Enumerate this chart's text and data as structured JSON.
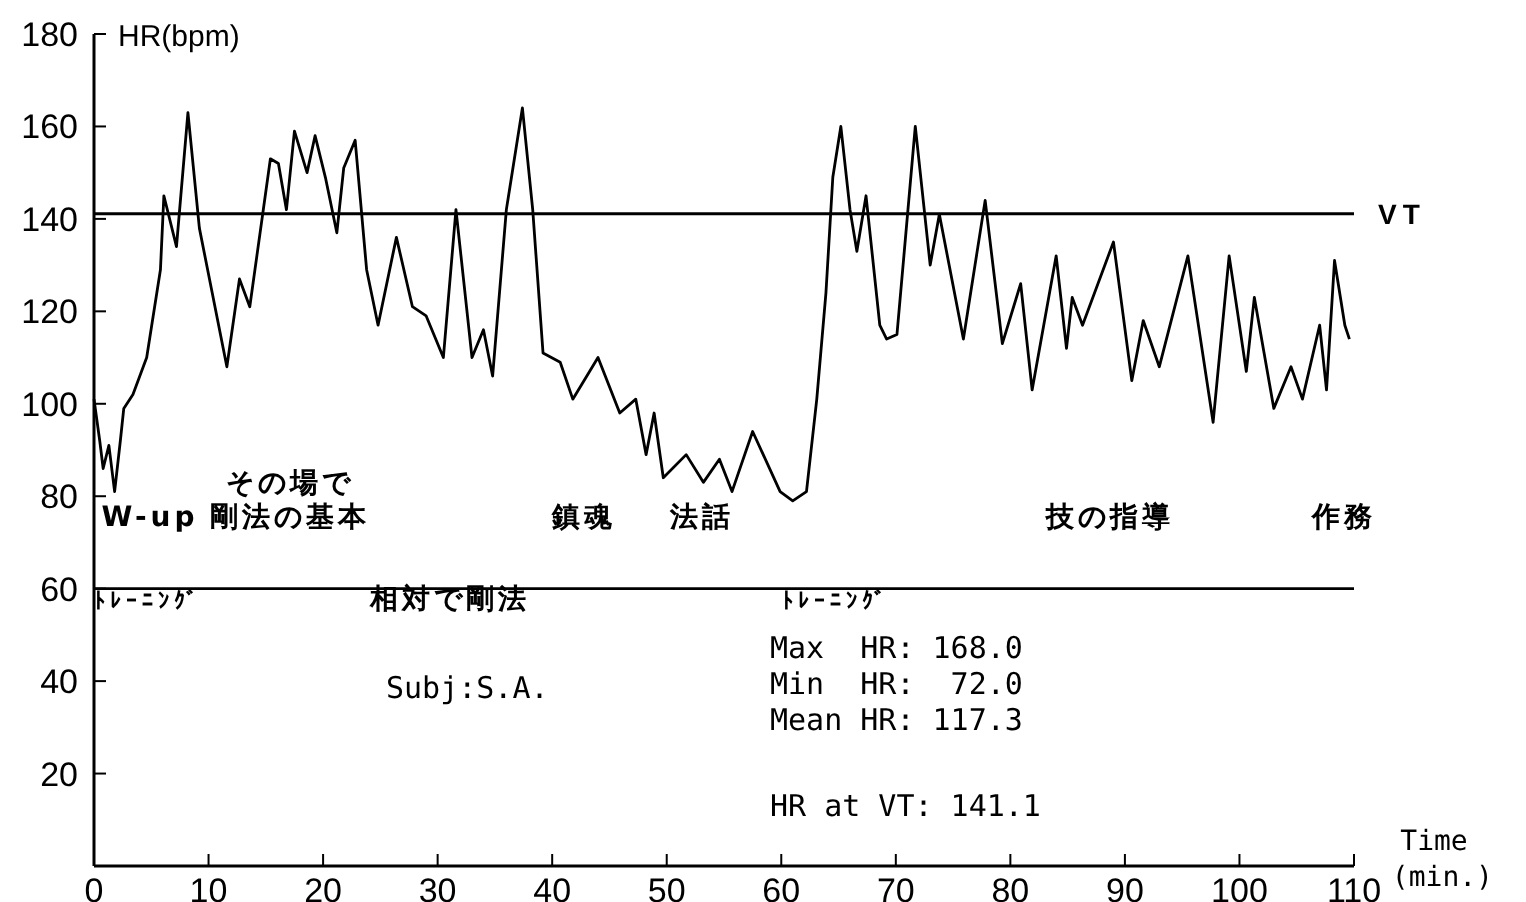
{
  "chart_data": {
    "type": "line",
    "ylabel": "HR(bpm)",
    "xlabel": "Time (min.)",
    "xlim": [
      0,
      110
    ],
    "ylim": [
      0,
      180
    ],
    "xticks": [
      0,
      10,
      20,
      30,
      40,
      50,
      60,
      70,
      80,
      90,
      100,
      110
    ],
    "yticks": [
      20,
      40,
      60,
      80,
      100,
      120,
      140,
      160,
      180
    ],
    "series": [
      {
        "color": "#000000",
        "x": [
          0,
          0.5,
          0.8,
          1.3,
          1.8,
          2.3,
          2.6,
          3.4,
          4.6,
          5.8,
          6.1,
          7.2,
          8.2,
          9.2,
          11.6,
          12.7,
          13.6,
          15.4,
          16.1,
          16.8,
          17.5,
          18.6,
          19.3,
          20.2,
          21.2,
          21.8,
          22.8,
          23.8,
          24.8,
          26.4,
          27.8,
          29.0,
          30.5,
          31.6,
          33.0,
          34.0,
          34.8,
          36.0,
          37.4,
          38.3,
          39.2,
          40.7,
          41.8,
          44.0,
          45.9,
          47.3,
          48.2,
          48.9,
          49.7,
          51.7,
          53.2,
          54.6,
          55.7,
          57.5,
          59.9,
          61.0,
          62.2,
          63.1,
          63.9,
          64.5,
          65.2,
          66.0,
          66.6,
          67.4,
          68.6,
          69.2,
          70.1,
          71.7,
          73.0,
          73.8,
          75.9,
          77.8,
          79.3,
          80.9,
          81.9,
          84.0,
          84.9,
          85.4,
          86.3,
          89.0,
          90.6,
          91.6,
          93.0,
          95.5,
          97.7,
          99.1,
          100.6,
          101.3,
          103.0,
          104.5,
          105.5,
          107.0,
          107.6,
          108.3,
          109.2,
          109.6
        ],
        "values": [
          101,
          92,
          86,
          91,
          81,
          92,
          99,
          102,
          110,
          129,
          145,
          134,
          163,
          138,
          108,
          127,
          121,
          153,
          152,
          142,
          159,
          150,
          158,
          149,
          137,
          151,
          157,
          129,
          117,
          136,
          121,
          119,
          110,
          142,
          110,
          116,
          106,
          142,
          164,
          142,
          111,
          109,
          101,
          110,
          98,
          101,
          89,
          98,
          84,
          89,
          83,
          88,
          81,
          94,
          81,
          79,
          81,
          101,
          124,
          149,
          160,
          142,
          133,
          145,
          117,
          114,
          115,
          160,
          130,
          141,
          114,
          144,
          113,
          126,
          103,
          132,
          112,
          123,
          117,
          135,
          105,
          118,
          108,
          132,
          96,
          132,
          107,
          123,
          99,
          108,
          101,
          117,
          103,
          131,
          117,
          114
        ]
      }
    ],
    "ref_lines": [
      {
        "axis": "y",
        "value": 141.1,
        "label": "VT"
      }
    ],
    "annotations": [
      "W-up",
      "ﾄﾚｰﾆﾝｸﾞ",
      "その場で",
      "剛法の基本",
      "相対で剛法",
      "鎮魂",
      "法話",
      "ﾄﾚｰﾆﾝｸﾞ",
      "技の指導",
      "作務",
      "Subj:S.A.",
      "Max  HR: 168.0",
      "Min  HR:  72.0",
      "Mean HR: 117.3",
      "HR at VT: 141.1"
    ]
  }
}
